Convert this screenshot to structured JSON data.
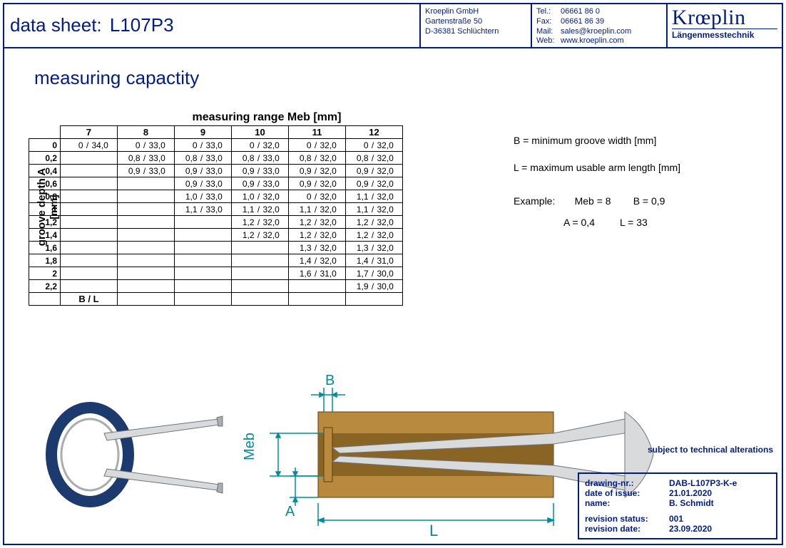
{
  "header": {
    "title_label": "data sheet:",
    "title_value": "L107P3",
    "address": [
      "Kroeplin GmbH",
      "Gartenstraße 50",
      "D-36381 Schlüchtern"
    ],
    "contact": {
      "tel_k": "Tel.:",
      "tel_v": "06661 86 0",
      "fax_k": "Fax:",
      "fax_v": "06661 86 39",
      "mail_k": "Mail:",
      "mail_v": "sales@kroeplin.com",
      "web_k": "Web:",
      "web_v": "www.kroeplin.com"
    },
    "logo_brand": "Krœplin",
    "logo_sub": "Längenmesstechnik"
  },
  "section_title": "measuring capactity",
  "table": {
    "col_title": "measuring range Meb [mm]",
    "row_title": "groove depth A\n[mm]",
    "meb_cols": [
      "7",
      "8",
      "9",
      "10",
      "11",
      "12"
    ],
    "a_rows": [
      "0",
      "0,2",
      "0,4",
      "0,6",
      "0,8",
      "1",
      "1,2",
      "1,4",
      "1,6",
      "1,8",
      "2",
      "2,2"
    ],
    "footer_label": "B / L",
    "cells": {
      "0": {
        "7": "0 / 34,0",
        "8": "0 / 33,0",
        "9": "0 / 33,0",
        "10": "0 / 32,0",
        "11": "0 / 32,0",
        "12": "0 / 32,0"
      },
      "0,2": {
        "8": "0,8 / 33,0",
        "9": "0,8 / 33,0",
        "10": "0,8 / 33,0",
        "11": "0,8 / 32,0",
        "12": "0,8 / 32,0"
      },
      "0,4": {
        "8": "0,9 / 33,0",
        "9": "0,9 / 33,0",
        "10": "0,9 / 33,0",
        "11": "0,9 / 32,0",
        "12": "0,9 / 32,0"
      },
      "0,6": {
        "9": "0,9 / 33,0",
        "10": "0,9 / 33,0",
        "11": "0,9 / 32,0",
        "12": "0,9 / 32,0"
      },
      "0,8": {
        "9": "1,0 / 33,0",
        "10": "1,0 / 32,0",
        "11": "0 / 32,0",
        "12": "1,1 / 32,0"
      },
      "1": {
        "9": "1,1 / 33,0",
        "10": "1,1 / 32,0",
        "11": "1,1 / 32,0",
        "12": "1,1 / 32,0"
      },
      "1,2": {
        "10": "1,2 / 32,0",
        "11": "1,2 / 32,0",
        "12": "1,2 / 32,0"
      },
      "1,4": {
        "10": "1,2 / 32,0",
        "11": "1,2 / 32,0",
        "12": "1,2 / 32,0"
      },
      "1,6": {
        "11": "1,3 / 32,0",
        "12": "1,3 / 32,0"
      },
      "1,8": {
        "11": "1,4 / 32,0",
        "12": "1,4 / 31,0"
      },
      "2": {
        "11": "1,6 / 31,0",
        "12": "1,7 / 30,0"
      },
      "2,2": {
        "12": "1,9 / 30,0"
      }
    }
  },
  "legend": {
    "b_def": "B = minimum groove width [mm]",
    "l_def": "L = maximum usable arm length [mm]",
    "example_label": "Example:",
    "ex_meb": "Meb = 8",
    "ex_b": "B = 0,9",
    "ex_a": "A = 0,4",
    "ex_l": "L = 33"
  },
  "drawing": {
    "label_B": "B",
    "label_Meb": "Meb",
    "label_A": "A",
    "label_L": "L",
    "colors": {
      "dim": "#008b9c",
      "brass": "#b88a3e",
      "brass_dark": "#8a6424",
      "steel_light": "#d9dadc",
      "steel_mid": "#a9acb0",
      "steel_dark": "#6f7276",
      "ring": "#1d3a6e"
    }
  },
  "disclaimer": "subject to technical alterations",
  "footer": {
    "drawing_nr_k": "drawing-nr.:",
    "drawing_nr_v": "DAB-L107P3-K-e",
    "date_issue_k": "date of issue:",
    "date_issue_v": "21.01.2020",
    "name_k": "name:",
    "name_v": "B. Schmidt",
    "rev_status_k": "revision status:",
    "rev_status_v": "001",
    "rev_date_k": "revision date:",
    "rev_date_v": "23.09.2020"
  }
}
